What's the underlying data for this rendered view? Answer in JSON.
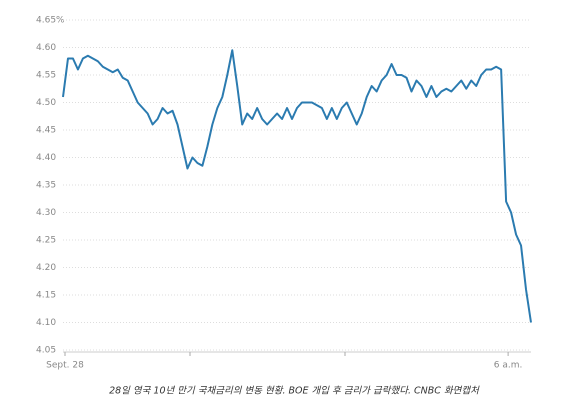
{
  "chart_data": {
    "type": "line",
    "caption": "28일 영국 10년 만기 국채금리의 변동 현황. BOE 개입 후 금리가 급락했다. CNBC 화면캡처",
    "categories": [
      "Sept. 28",
      null,
      null,
      null,
      null,
      null,
      null,
      null,
      null,
      null,
      null,
      null,
      null,
      null,
      null,
      null,
      null,
      null,
      null,
      null,
      null,
      null,
      null,
      null,
      null,
      null,
      null,
      null,
      null,
      null,
      null,
      null,
      null,
      null,
      null,
      null,
      null,
      null,
      null,
      null,
      null,
      null,
      null,
      null,
      null,
      null,
      null,
      null,
      null,
      null,
      null,
      null,
      null,
      null,
      null,
      null,
      null,
      null,
      null,
      null,
      null,
      null,
      null,
      null,
      null,
      null,
      null,
      null,
      null,
      null,
      null,
      null,
      null,
      null,
      null,
      null,
      null,
      null,
      null,
      null,
      null,
      null,
      null,
      null,
      null,
      null,
      null,
      null,
      null,
      "6 a.m.",
      null,
      null,
      null,
      null,
      null
    ],
    "series": [
      {
        "color": "#2b7bb0",
        "values": [
          4.51,
          4.58,
          4.58,
          4.56,
          4.58,
          4.585,
          4.58,
          4.575,
          4.565,
          4.56,
          4.555,
          4.56,
          4.545,
          4.54,
          4.52,
          4.5,
          4.49,
          4.48,
          4.46,
          4.47,
          4.49,
          4.48,
          4.485,
          4.46,
          4.42,
          4.38,
          4.4,
          4.39,
          4.385,
          4.42,
          4.46,
          4.49,
          4.51,
          4.55,
          4.595,
          4.53,
          4.46,
          4.48,
          4.47,
          4.49,
          4.47,
          4.46,
          4.47,
          4.48,
          4.47,
          4.49,
          4.47,
          4.49,
          4.5,
          4.5,
          4.5,
          4.495,
          4.49,
          4.47,
          4.49,
          4.47,
          4.49,
          4.5,
          4.48,
          4.46,
          4.48,
          4.51,
          4.53,
          4.52,
          4.54,
          4.55,
          4.57,
          4.55,
          4.55,
          4.545,
          4.52,
          4.54,
          4.53,
          4.51,
          4.53,
          4.51,
          4.52,
          4.525,
          4.52,
          4.53,
          4.54,
          4.525,
          4.54,
          4.53,
          4.55,
          4.56,
          4.56,
          4.565,
          4.56,
          4.32,
          4.3,
          4.26,
          4.24,
          4.16,
          4.1
        ]
      }
    ],
    "ylim": [
      4.05,
      4.65
    ],
    "yticks": [
      4.05,
      {
        "value": 4.1,
        "label": "4.10"
      },
      4.15,
      {
        "value": 4.2,
        "label": "4.20"
      },
      4.25,
      {
        "value": 4.3,
        "label": "4.30"
      },
      4.35,
      {
        "value": 4.4,
        "label": "4.40"
      },
      4.45,
      {
        "value": 4.5,
        "label": "4.50"
      },
      4.55,
      {
        "value": 4.6,
        "label": "4.60"
      },
      {
        "value": 4.65,
        "label": "4.65%"
      }
    ],
    "grid": true
  }
}
